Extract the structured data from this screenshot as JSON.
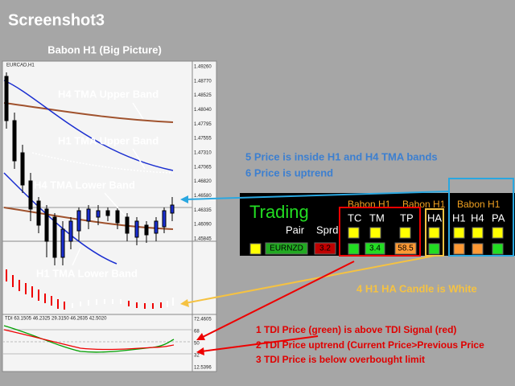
{
  "title": "Screenshot3",
  "chart": {
    "heading": "Babon H1 (Big Picture)",
    "symbol": "EURCAD,H1",
    "price_axis": [
      "1.49260",
      "1.48770",
      "1.48525",
      "1.48040",
      "1.47795",
      "1.47555",
      "1.47310",
      "1.47065",
      "1.46820",
      "1.46580",
      "1.46335",
      "1.46090",
      "1.45845"
    ],
    "band_labels": [
      "H4 TMA Upper Band",
      "H1 TMA Upper Band",
      "H4 TMA Lower Band",
      "H1 TMA Lower Band"
    ],
    "tdi_label": "TDI 63.1505 46.2325 29.3150 46.2635 42.5020",
    "tdi_axis": [
      "72.4605",
      "68",
      "50",
      "32",
      "12.5396"
    ]
  },
  "notes": {
    "blue": [
      "5 Price is inside H1 and H4 TMA bands",
      "6 Price is uptrend"
    ],
    "yellow": "4 H1 HA Candle is White",
    "red": [
      "1 TDI Price (green) is above TDI Signal (red)",
      "2 TDI Price uptrend (Current Price>Previous Price",
      "3 TDI Price is below overbought limit"
    ]
  },
  "dashboard": {
    "title": "Trading",
    "groups": [
      "Babon H1",
      "Babon H1",
      "Babon H1"
    ],
    "headers": [
      "Pair",
      "Sprd",
      "TC",
      "TM",
      "TP",
      "HA",
      "H1",
      "H4",
      "PA"
    ],
    "pair": "EURNZD",
    "spread": "3.2",
    "tm": "3.4",
    "tp": "58.5"
  }
}
